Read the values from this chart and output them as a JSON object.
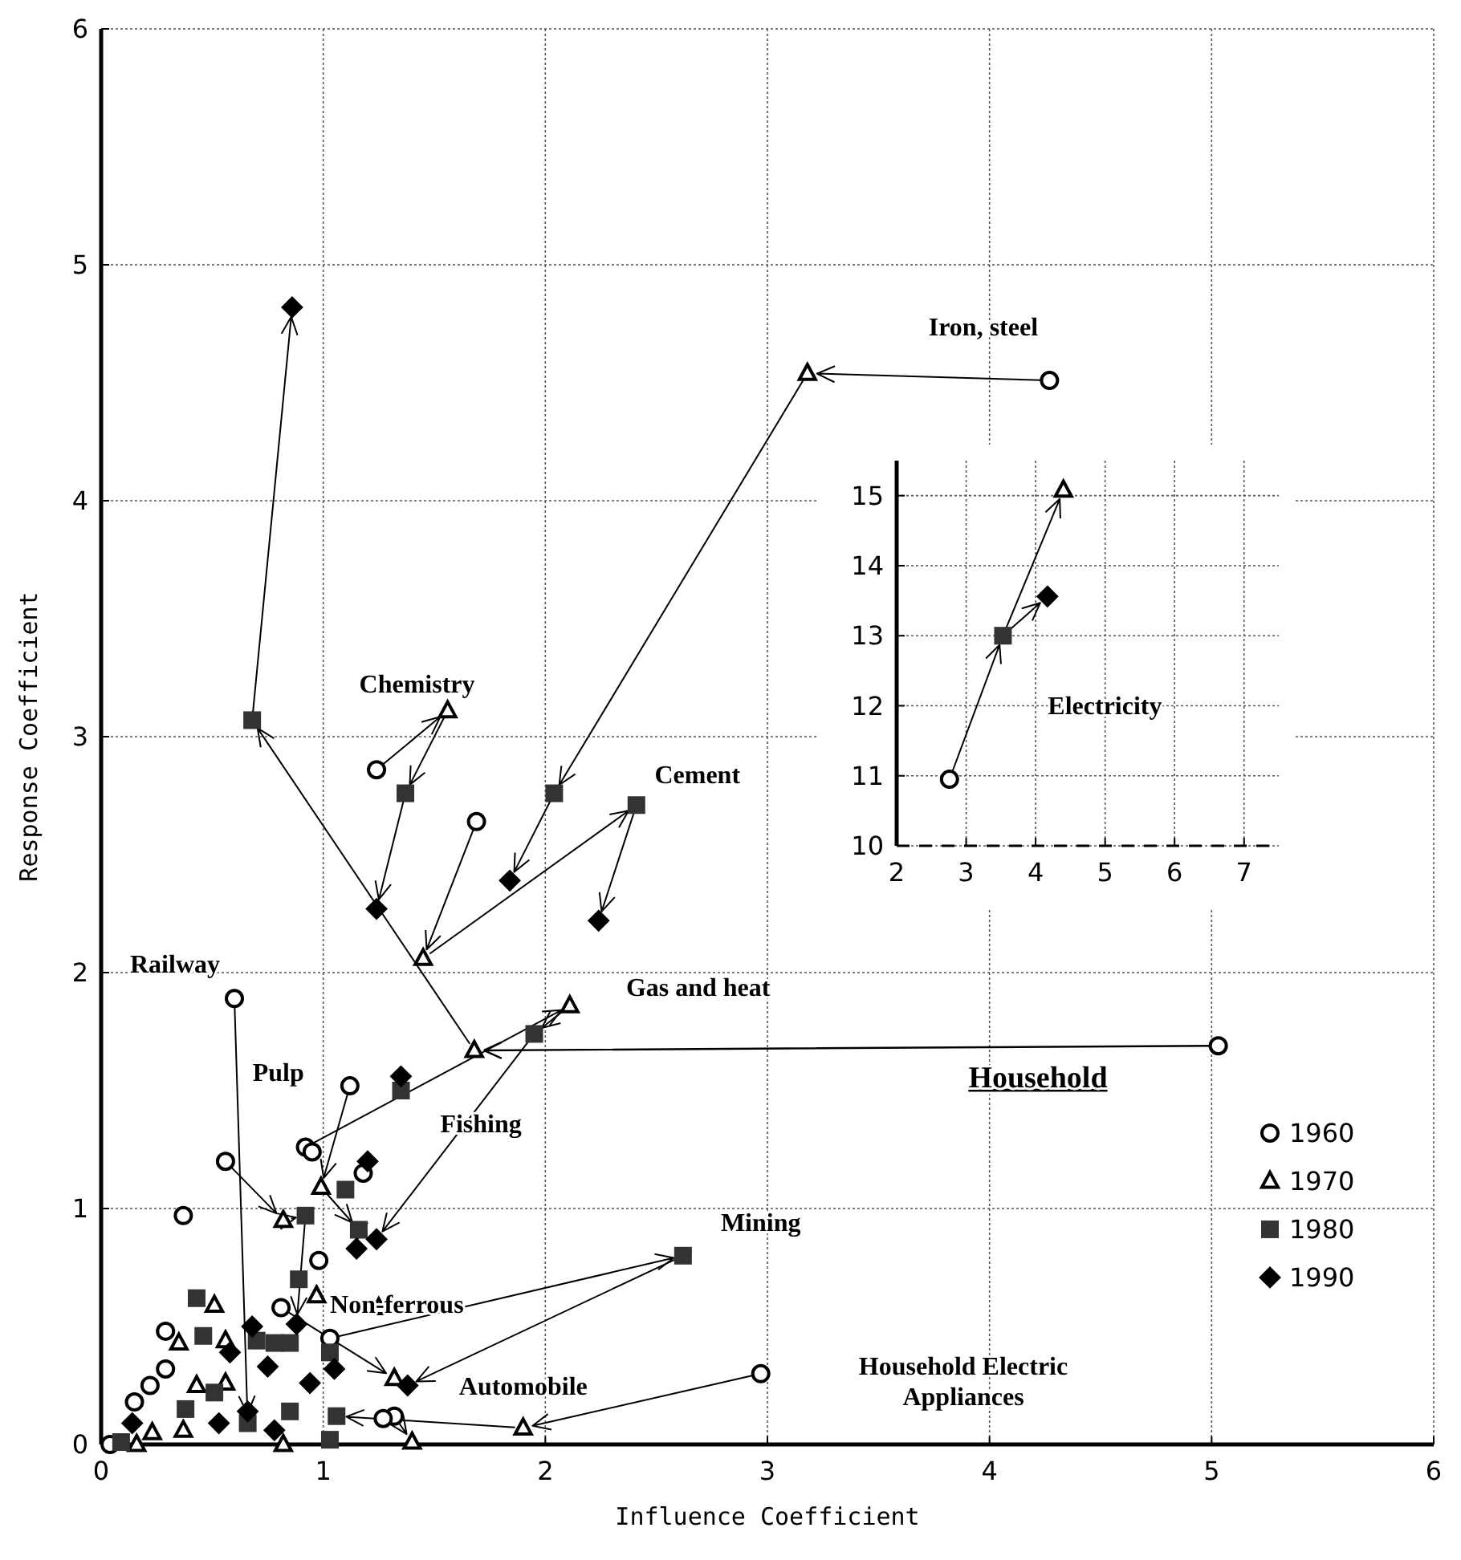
{
  "chart_data": [
    {
      "type": "scatter",
      "xlabel": "Influence Coefficient",
      "ylabel": "Response Coefficient",
      "xlim": [
        0,
        6
      ],
      "ylim": [
        0,
        6
      ],
      "xticks": [
        0,
        1,
        2,
        3,
        4,
        5,
        6
      ],
      "yticks": [
        0,
        1,
        2,
        3,
        4,
        5,
        6
      ],
      "grid": true,
      "legend": "right",
      "series": [
        {
          "name": "1960",
          "color": "#000000",
          "marker": "circle",
          "x": [
            4.27,
            1.69,
            1.24,
            0.6,
            5.03,
            2.97,
            1.12,
            0.56,
            0.92,
            0.95,
            0.37,
            1.18,
            0.98,
            0.81,
            0.29,
            1.03,
            0.29,
            0.22,
            0.15,
            1.32,
            1.27,
            0.04
          ],
          "values": [
            4.51,
            2.64,
            2.86,
            1.89,
            1.69,
            0.3,
            1.52,
            1.2,
            1.26,
            1.24,
            0.97,
            1.15,
            0.78,
            0.58,
            0.48,
            0.45,
            0.32,
            0.25,
            0.18,
            0.12,
            0.11,
            0.0
          ]
        },
        {
          "name": "1970",
          "color": "#000000",
          "marker": "triangle",
          "x": [
            3.18,
            1.56,
            1.45,
            1.68,
            2.11,
            0.99,
            0.82,
            1.25,
            0.97,
            0.51,
            0.35,
            0.56,
            1.32,
            1.9,
            1.4,
            0.43,
            0.56,
            0.16,
            0.23,
            0.37,
            0.82
          ],
          "values": [
            4.54,
            3.11,
            2.06,
            1.67,
            1.86,
            1.09,
            0.95,
            0.58,
            0.63,
            0.59,
            0.43,
            0.44,
            0.28,
            0.07,
            0.01,
            0.25,
            0.26,
            0.0,
            0.05,
            0.06,
            0.0
          ]
        },
        {
          "name": "1980",
          "color": "#333333",
          "marker": "square",
          "x": [
            0.68,
            1.37,
            2.04,
            2.41,
            1.95,
            1.35,
            2.62,
            0.92,
            1.1,
            1.16,
            0.89,
            0.43,
            0.46,
            0.7,
            0.78,
            0.85,
            1.03,
            1.06,
            0.38,
            0.51,
            0.85,
            1.03,
            0.09,
            0.66
          ],
          "values": [
            3.07,
            2.76,
            2.76,
            2.71,
            1.74,
            1.5,
            0.8,
            0.97,
            1.08,
            0.91,
            0.7,
            0.62,
            0.46,
            0.44,
            0.43,
            0.43,
            0.39,
            0.12,
            0.15,
            0.22,
            0.14,
            0.02,
            0.01,
            0.09
          ]
        },
        {
          "name": "1990",
          "color": "#000000",
          "marker": "diamond",
          "x": [
            0.86,
            1.24,
            1.84,
            2.24,
            1.35,
            1.2,
            1.24,
            1.15,
            0.88,
            0.68,
            0.58,
            0.75,
            0.94,
            1.05,
            1.38,
            0.14,
            0.66,
            0.53,
            0.78
          ],
          "values": [
            4.82,
            2.27,
            2.39,
            2.22,
            1.56,
            1.2,
            0.87,
            0.83,
            0.51,
            0.5,
            0.39,
            0.33,
            0.26,
            0.32,
            0.25,
            0.09,
            0.14,
            0.09,
            0.06
          ]
        }
      ],
      "annotations": [
        "Iron, steel",
        {
          "text": "Chemistry",
          "x": 1.56,
          "y": 3.11
        },
        {
          "text": "Cement",
          "x": 2.41,
          "y": 2.71
        },
        {
          "text": "Railway",
          "x": 0.6,
          "y": 1.89
        },
        "Gas and heat",
        "Pulp",
        "Fishing",
        "Household",
        "Mining",
        {
          "text": "Non-ferrous",
          "x": 0.97,
          "y": 0.63
        },
        {
          "text": "Automobile",
          "x": 1.38,
          "y": 0.25
        },
        "Household Electric\nAppliances"
      ]
    },
    {
      "type": "scatter",
      "xlim": [
        2,
        7.5
      ],
      "ylim": [
        10,
        15.5
      ],
      "xticks": [
        2,
        3,
        4,
        5,
        6,
        7
      ],
      "yticks": [
        10,
        11,
        12,
        13,
        14,
        15
      ],
      "grid": true,
      "series": [
        {
          "color": "#000000",
          "marker": "circle",
          "x": [
            2.76
          ],
          "values": [
            10.95
          ]
        },
        {
          "color": "#000000",
          "marker": "triangle",
          "x": [
            4.4
          ],
          "values": [
            15.08
          ]
        },
        {
          "color": "#333333",
          "marker": "square",
          "x": [
            3.53
          ],
          "values": [
            13.0
          ]
        },
        {
          "color": "#000000",
          "marker": "diamond",
          "x": [
            4.17
          ],
          "values": [
            13.56
          ]
        }
      ],
      "annotations": [
        "Electricity"
      ]
    }
  ]
}
